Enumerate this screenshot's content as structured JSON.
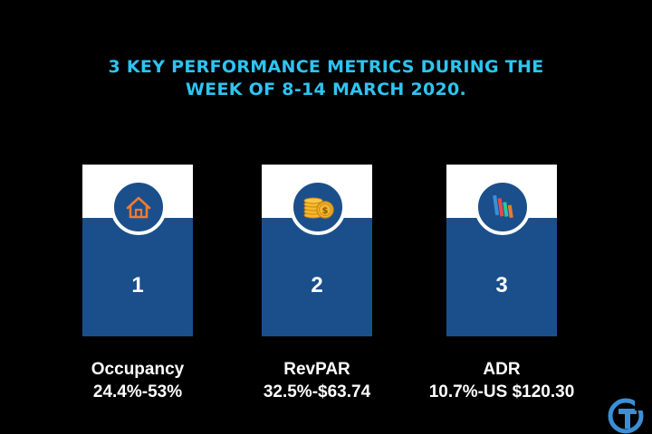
{
  "header": {
    "title_line1": "3 KEY PERFORMANCE METRICS DURING THE",
    "title_line2": "WEEK OF 8-14 MARCH 2020."
  },
  "colors": {
    "accent": "#2ec4f2",
    "card_blue": "#1b4f8b",
    "icon_orange": "#f07a2e"
  },
  "metrics": [
    {
      "number": "1",
      "name": "Occupancy",
      "value": "24.4%-53%",
      "icon": "house-icon"
    },
    {
      "number": "2",
      "name": "RevPAR",
      "value": "32.5%-$63.74",
      "icon": "coins-icon"
    },
    {
      "number": "3",
      "name": "ADR",
      "value": "10.7%-US $120.30",
      "icon": "bar-chart-icon"
    }
  ]
}
